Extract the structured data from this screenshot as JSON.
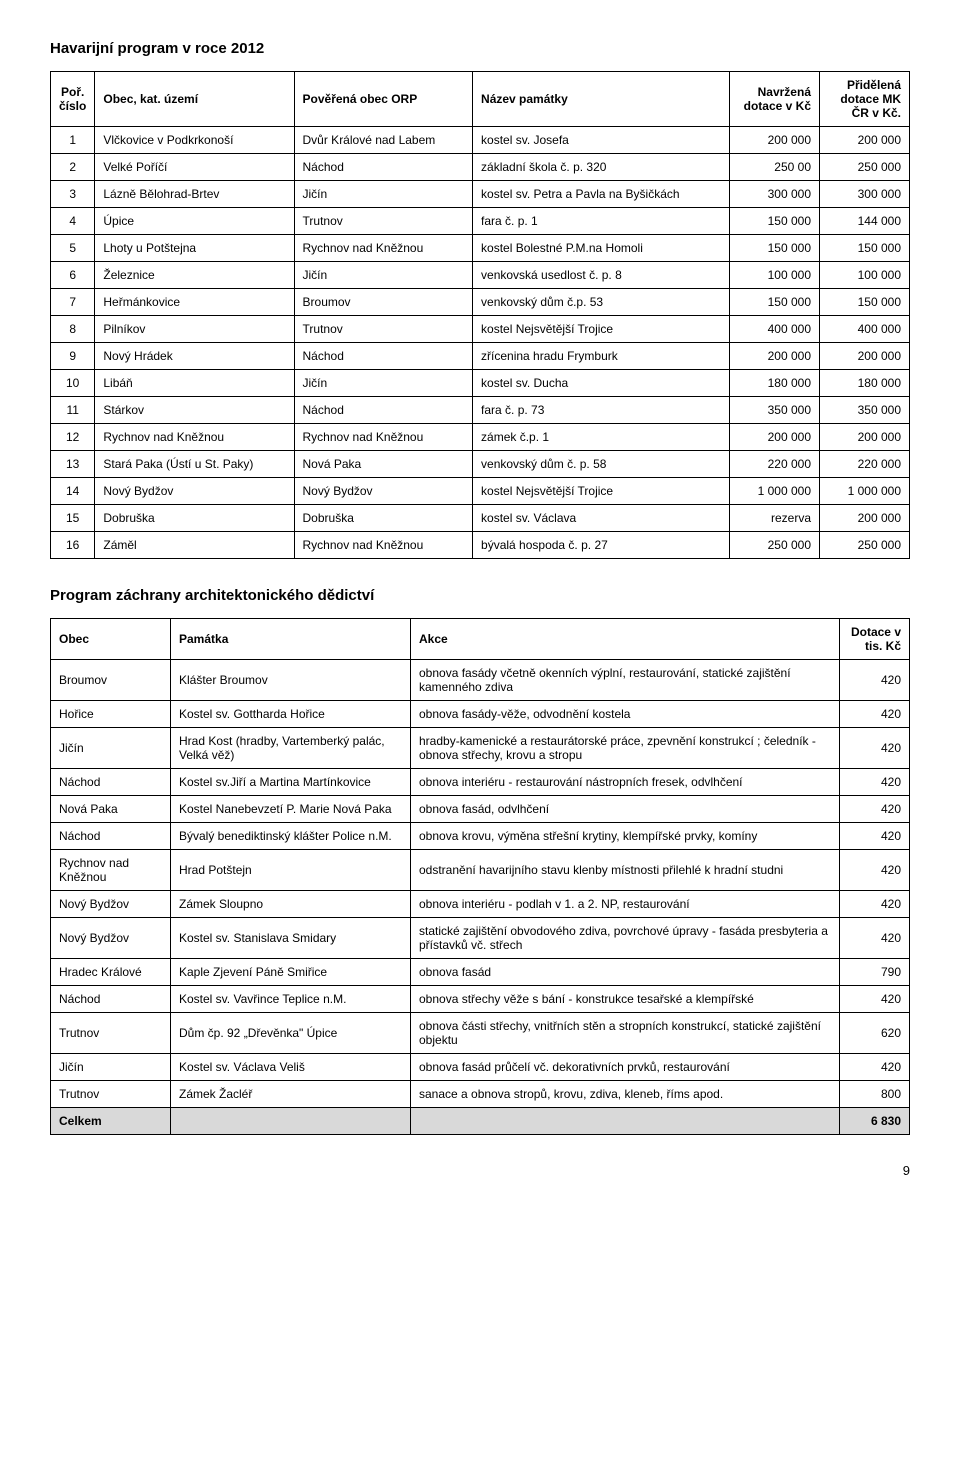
{
  "heading1": "Havarijní program v roce 2012",
  "t1": {
    "headers": {
      "porCislo": "Poř. číslo",
      "obecKat": "Obec, kat. území",
      "orp": "Pověřená obec ORP",
      "nazev": "Název památky",
      "navrzena": "Navržená dotace v Kč",
      "pridelena": "Přidělená dotace MK ČR v Kč."
    },
    "rows": [
      [
        "1",
        "Vlčkovice v Podkrkonoší",
        "Dvůr Králové nad Labem",
        "kostel sv. Josefa",
        "200 000",
        "200 000"
      ],
      [
        "2",
        "Velké Poříčí",
        "Náchod",
        "základní škola č. p. 320",
        "250 00",
        "250 000"
      ],
      [
        "3",
        "Lázně Bělohrad-Brtev",
        "Jičín",
        "kostel sv. Petra a Pavla na Byšičkách",
        "300 000",
        "300 000"
      ],
      [
        "4",
        "Úpice",
        "Trutnov",
        "fara č. p. 1",
        "150 000",
        "144 000"
      ],
      [
        "5",
        "Lhoty u Potštejna",
        "Rychnov nad Kněžnou",
        "kostel Bolestné P.M.na Homoli",
        "150 000",
        "150 000"
      ],
      [
        "6",
        "Železnice",
        "Jičín",
        "venkovská usedlost č. p. 8",
        "100 000",
        "100 000"
      ],
      [
        "7",
        "Heřmánkovice",
        "Broumov",
        "venkovský dům č.p. 53",
        "150 000",
        "150 000"
      ],
      [
        "8",
        "Pilníkov",
        "Trutnov",
        "kostel Nejsvětější Trojice",
        "400 000",
        "400 000"
      ],
      [
        "9",
        "Nový Hrádek",
        "Náchod",
        "zřícenina hradu Frymburk",
        "200 000",
        "200 000"
      ],
      [
        "10",
        "Libáň",
        "Jičín",
        "kostel sv. Ducha",
        "180 000",
        "180 000"
      ],
      [
        "11",
        "Stárkov",
        "Náchod",
        "fara č. p. 73",
        "350 000",
        "350 000"
      ],
      [
        "12",
        "Rychnov nad Kněžnou",
        "Rychnov nad Kněžnou",
        "zámek č.p. 1",
        "200 000",
        "200 000"
      ],
      [
        "13",
        "Stará Paka (Ústí u St. Paky)",
        "Nová Paka",
        "venkovský dům č. p. 58",
        "220 000",
        "220 000"
      ],
      [
        "14",
        "Nový Bydžov",
        "Nový Bydžov",
        "kostel Nejsvětější Trojice",
        "1 000 000",
        "1 000 000"
      ],
      [
        "15",
        "Dobruška",
        "Dobruška",
        "kostel sv. Václava",
        "rezerva",
        "200 000"
      ],
      [
        "16",
        "Záměl",
        "Rychnov nad Kněžnou",
        "bývalá hospoda č. p. 27",
        "250 000",
        "250 000"
      ]
    ]
  },
  "heading2": "Program záchrany architektonického dědictví",
  "t2": {
    "headers": {
      "obec": "Obec",
      "pamatka": "Památka",
      "akce": "Akce",
      "dotace": "Dotace v tis. Kč"
    },
    "rows": [
      [
        "Broumov",
        "Klášter Broumov",
        "obnova fasády včetně okenních výplní, restaurování, statické zajištění kamenného zdiva",
        "420"
      ],
      [
        "Hořice",
        "Kostel sv. Gottharda Hořice",
        "obnova fasády-věže, odvodnění kostela",
        "420"
      ],
      [
        "Jičín",
        "Hrad Kost (hradby, Vartemberký palác, Velká věž)",
        "hradby-kamenické a restaurátorské práce, zpevnění konstrukcí ; čeledník - obnova střechy, krovu a stropu",
        "420"
      ],
      [
        "Náchod",
        "Kostel sv.Jiří a Martina Martínkovice",
        "obnova interiéru - restaurování nástropních fresek, odvlhčení",
        "420"
      ],
      [
        "Nová Paka",
        "Kostel Nanebevzetí P. Marie Nová Paka",
        "obnova fasád, odvlhčení",
        "420"
      ],
      [
        "Náchod",
        "Bývalý benediktinský klášter Police n.M.",
        "obnova krovu, výměna střešní krytiny, klempířské prvky, komíny",
        "420"
      ],
      [
        "Rychnov nad Kněžnou",
        "Hrad Potštejn",
        "odstranění havarijního stavu  klenby místnosti přilehlé k hradní studni",
        "420"
      ],
      [
        "Nový Bydžov",
        "Zámek Sloupno",
        "obnova interiéru - podlah v 1. a 2. NP, restaurování",
        "420"
      ],
      [
        "Nový Bydžov",
        "Kostel sv. Stanislava Smidary",
        "statické zajištění obvodového zdiva, povrchové úpravy - fasáda presbyteria a přístavků vč. střech",
        "420"
      ],
      [
        "Hradec Králové",
        "Kaple Zjevení Páně Smiřice",
        "obnova fasád",
        "790"
      ],
      [
        "Náchod",
        "Kostel sv. Vavřince Teplice n.M.",
        "obnova střechy věže s bání - konstrukce tesařské a klempířské",
        "420"
      ],
      [
        "Trutnov",
        "Dům čp. 92 „Dřevěnka\"  Úpice",
        "obnova části střechy, vnitřních stěn a stropních konstrukcí, statické zajištění objektu",
        "620"
      ],
      [
        "Jičín",
        "Kostel sv. Václava Veliš",
        "obnova fasád průčelí vč. dekorativních prvků, restaurování",
        "420"
      ],
      [
        "Trutnov",
        "Zámek Žacléř",
        "sanace a obnova stropů, krovu, zdiva, kleneb, říms apod.",
        "800"
      ]
    ],
    "total": {
      "label": "Celkem",
      "value": "6 830"
    }
  },
  "pageNumber": "9"
}
